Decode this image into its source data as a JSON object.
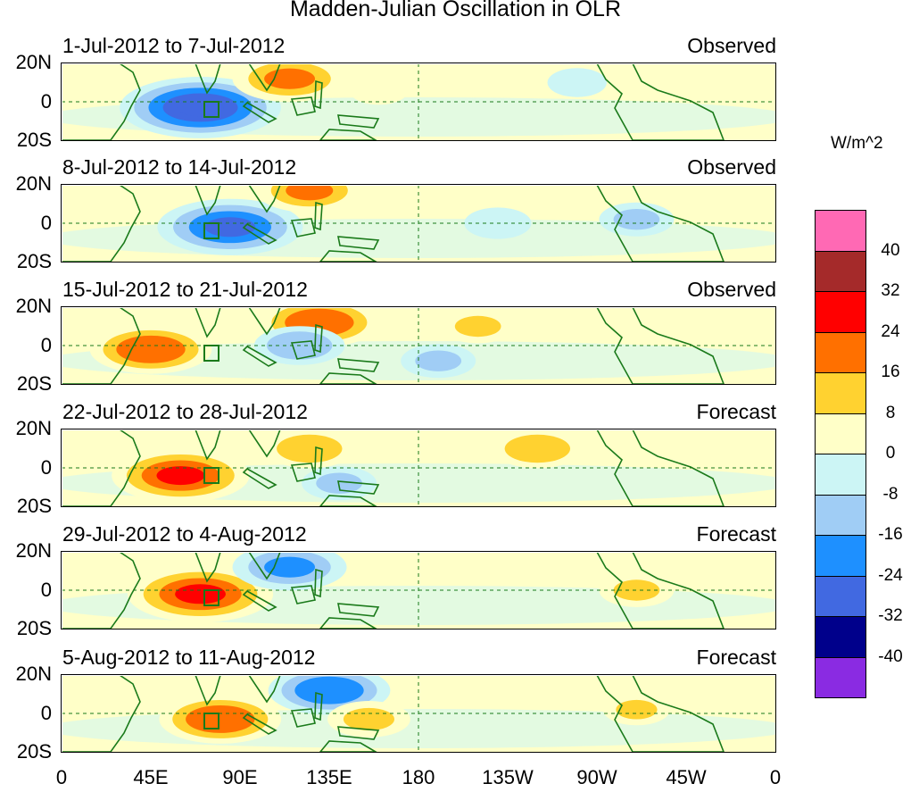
{
  "title": "Madden-Julian Oscillation in OLR",
  "units": "W/m^2",
  "panels": [
    {
      "date": "1-Jul-2012 to 7-Jul-2012",
      "kind": "Observed"
    },
    {
      "date": "8-Jul-2012 to 14-Jul-2012",
      "kind": "Observed"
    },
    {
      "date": "15-Jul-2012 to 21-Jul-2012",
      "kind": "Observed"
    },
    {
      "date": "22-Jul-2012 to 28-Jul-2012",
      "kind": "Forecast"
    },
    {
      "date": "29-Jul-2012 to 4-Aug-2012",
      "kind": "Forecast"
    },
    {
      "date": "5-Aug-2012 to 11-Aug-2012",
      "kind": "Forecast"
    }
  ],
  "y_tick_labels": [
    "20N",
    "0",
    "20S"
  ],
  "x_tick_labels": [
    "0",
    "45E",
    "90E",
    "135E",
    "180",
    "135W",
    "90W",
    "45W",
    "0"
  ],
  "colorbar": {
    "labels": [
      "40",
      "32",
      "24",
      "16",
      "8",
      "0",
      "-8",
      "-16",
      "-24",
      "-32",
      "-40"
    ],
    "colors": [
      "#ff69b4",
      "#a52a2a",
      "#ff0000",
      "#ff7000",
      "#ffd230",
      "#ffffc8",
      "#ccf5f5",
      "#a0cdf5",
      "#1e90ff",
      "#4169e1",
      "#00008b",
      "#8a2be2"
    ]
  },
  "chart_data": {
    "type": "heatmap",
    "title": "Madden-Julian Oscillation in OLR",
    "colorbar_label": "W/m^2",
    "levels": [
      -40,
      -32,
      -24,
      -16,
      -8,
      0,
      8,
      16,
      24,
      32,
      40
    ],
    "lon_range": [
      0,
      360
    ],
    "lat_range": [
      -20,
      20
    ],
    "anomaly_centers": [
      [
        {
          "lon": 70,
          "lat": -3,
          "value": -32
        },
        {
          "lon": 115,
          "lat": 12,
          "value": 20
        },
        {
          "lon": 160,
          "lat": 6,
          "value": 6
        },
        {
          "lon": 260,
          "lat": 10,
          "value": -6
        }
      ],
      [
        {
          "lon": 85,
          "lat": -2,
          "value": -28
        },
        {
          "lon": 125,
          "lat": 17,
          "value": 18
        },
        {
          "lon": 220,
          "lat": 0,
          "value": -8
        },
        {
          "lon": 290,
          "lat": 2,
          "value": -10
        }
      ],
      [
        {
          "lon": 45,
          "lat": -2,
          "value": 22
        },
        {
          "lon": 130,
          "lat": 12,
          "value": 22
        },
        {
          "lon": 120,
          "lat": 0,
          "value": -14
        },
        {
          "lon": 210,
          "lat": 10,
          "value": 10
        },
        {
          "lon": 190,
          "lat": -8,
          "value": -10
        }
      ],
      [
        {
          "lon": 60,
          "lat": -4,
          "value": 26
        },
        {
          "lon": 125,
          "lat": 10,
          "value": 14
        },
        {
          "lon": 240,
          "lat": 10,
          "value": 14
        },
        {
          "lon": 140,
          "lat": -8,
          "value": -10
        }
      ],
      [
        {
          "lon": 70,
          "lat": -2,
          "value": 28
        },
        {
          "lon": 115,
          "lat": 12,
          "value": -20
        },
        {
          "lon": 290,
          "lat": 0,
          "value": 10
        }
      ],
      [
        {
          "lon": 80,
          "lat": -3,
          "value": 22
        },
        {
          "lon": 135,
          "lat": 12,
          "value": -22
        },
        {
          "lon": 155,
          "lat": -3,
          "value": 12
        },
        {
          "lon": 290,
          "lat": 2,
          "value": 8
        }
      ]
    ]
  }
}
